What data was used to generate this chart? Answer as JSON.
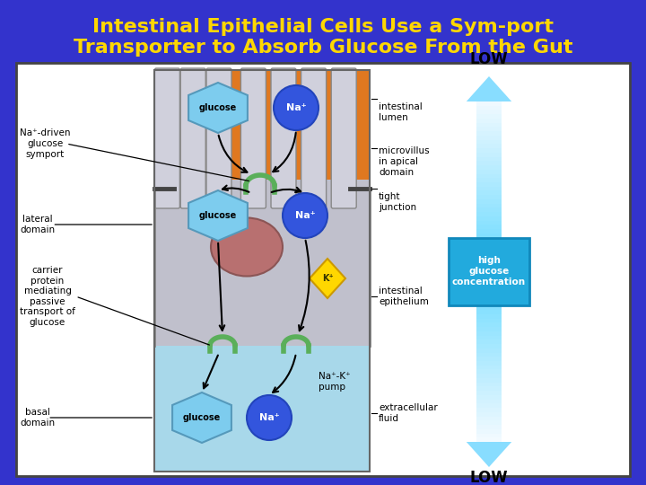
{
  "title_line1": "Intestinal Epithelial Cells Use a Sym-port",
  "title_line2": "Transporter to Absorb Glucose From the Gut",
  "title_color": "#FFD700",
  "bg_color": "#3333CC",
  "fig_width": 7.2,
  "fig_height": 5.4,
  "low_top_text": "LOW",
  "low_bot_text": "LOW",
  "high_glucose_text": "high\nglucose\nconcentration"
}
